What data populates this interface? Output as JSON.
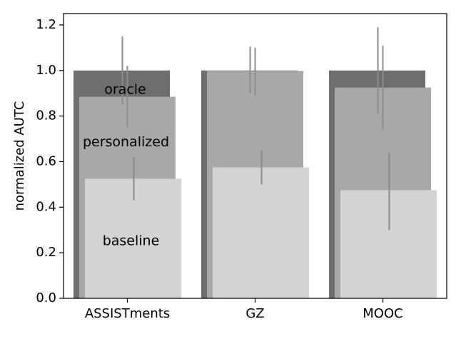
{
  "chart_data": {
    "type": "bar",
    "title": "",
    "xlabel": "",
    "ylabel": "normalized AUTC",
    "ylim": [
      0,
      1.25
    ],
    "yticks": [
      0.0,
      0.2,
      0.4,
      0.6,
      0.8,
      1.0,
      1.2
    ],
    "ytick_labels": [
      "0.0",
      "0.2",
      "0.4",
      "0.6",
      "0.8",
      "1.0",
      "1.2"
    ],
    "categories": [
      "ASSISTments",
      "GZ",
      "MOOC"
    ],
    "grid": false,
    "legend": "none",
    "series": [
      {
        "name": "oracle",
        "color": "#6e6e6e",
        "errcolor": "#8c8c8c",
        "values": [
          1.0,
          1.0,
          1.0
        ],
        "err_low": [
          0.85,
          0.9,
          0.81
        ],
        "err_high": [
          1.15,
          1.105,
          1.19
        ]
      },
      {
        "name": "personalized",
        "color": "#a8a8a8",
        "errcolor": "#8c8c8c",
        "values": [
          0.885,
          0.998,
          0.925
        ],
        "err_low": [
          0.75,
          0.89,
          0.74
        ],
        "err_high": [
          1.02,
          1.1,
          1.11
        ]
      },
      {
        "name": "baseline",
        "color": "#d3d3d3",
        "errcolor": "#8a8a8a",
        "values": [
          0.525,
          0.575,
          0.475
        ],
        "err_low": [
          0.43,
          0.5,
          0.3
        ],
        "err_high": [
          0.62,
          0.65,
          0.64
        ]
      }
    ]
  }
}
